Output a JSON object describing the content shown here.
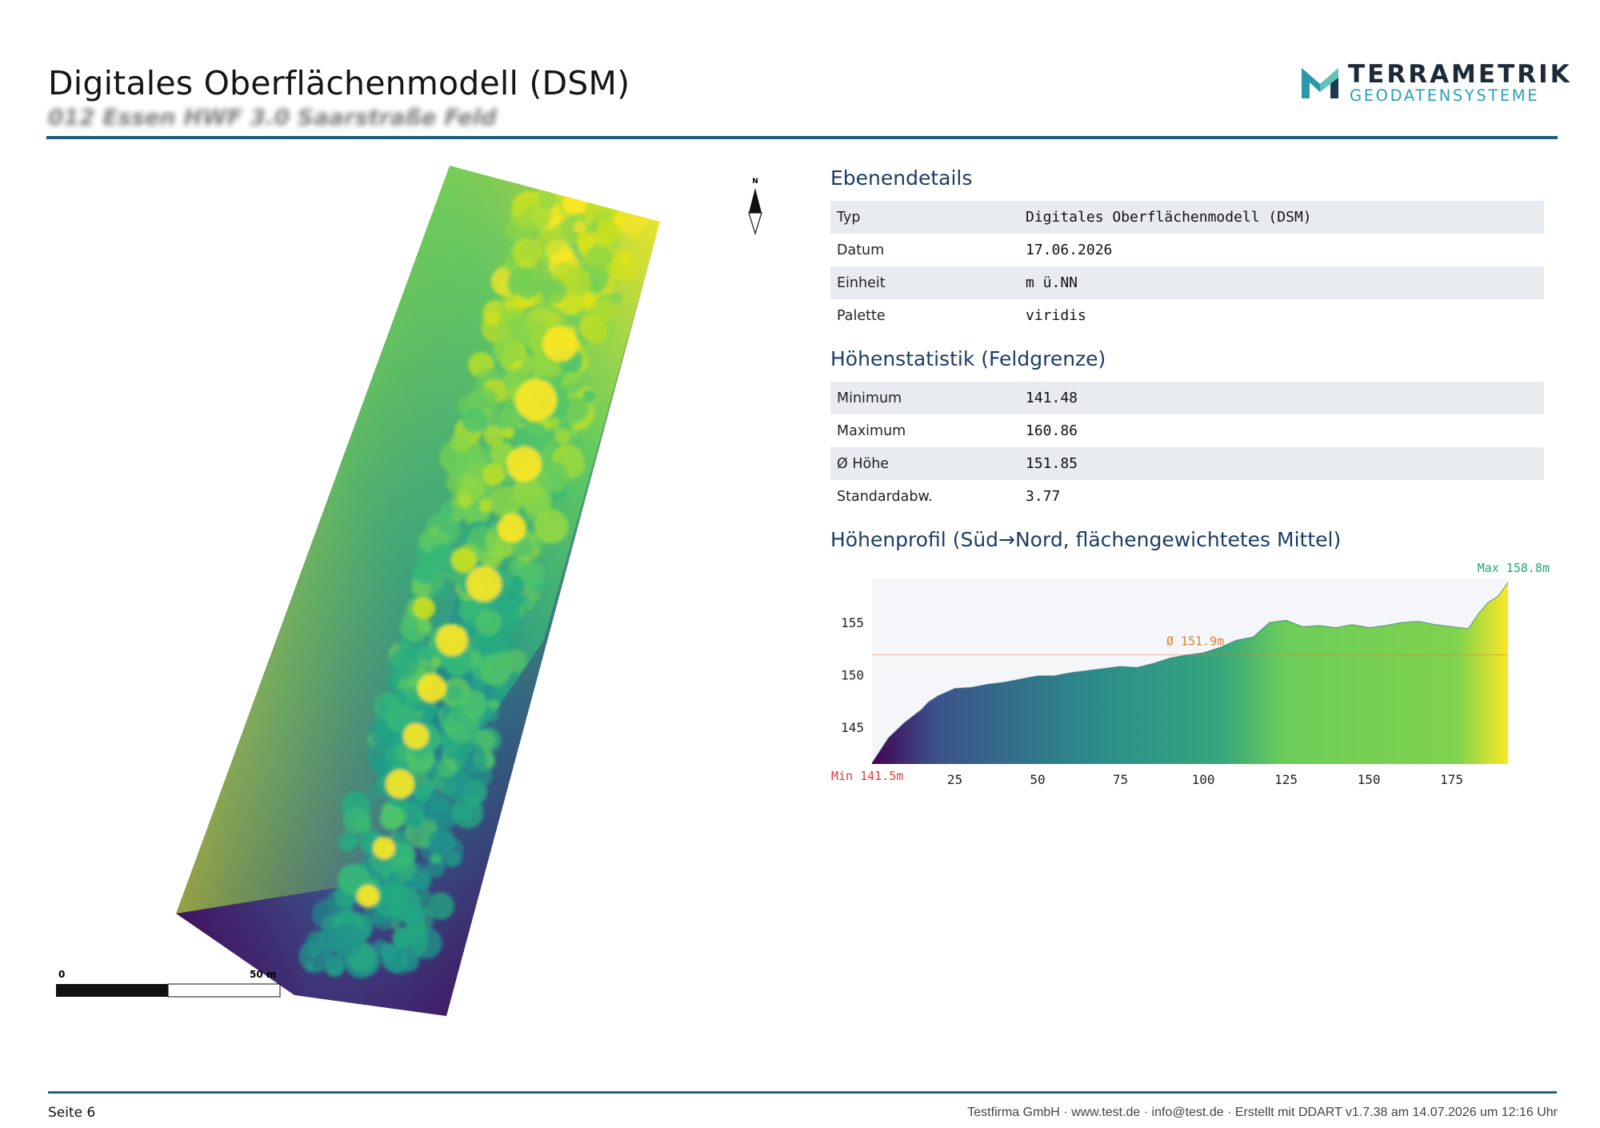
{
  "header": {
    "title": "Digitales Oberflächenmodell (DSM)",
    "subtitle": "012 Essen HWF 3.0 Saarstraße Feld"
  },
  "logo": {
    "brand": "TERRAMETRIK",
    "tagline": "GEODATENSYSTEME",
    "colors": {
      "dark": "#1d2a38",
      "teal": "#29a0b1"
    }
  },
  "map": {
    "palette_colors": [
      "#440154",
      "#31688e",
      "#35b779",
      "#fde725"
    ],
    "north_label": "N",
    "scalebar": {
      "start_label": "0",
      "end_label": "50 m"
    }
  },
  "details": {
    "heading": "Ebenendetails",
    "rows": [
      {
        "key": "Typ",
        "value": "Digitales Oberflächenmodell (DSM)"
      },
      {
        "key": "Datum",
        "value": "17.06.2026"
      },
      {
        "key": "Einheit",
        "value": "m ü.NN"
      },
      {
        "key": "Palette",
        "value": "viridis"
      }
    ]
  },
  "stats": {
    "heading": "Höhenstatistik (Feldgrenze)",
    "rows": [
      {
        "key": "Minimum",
        "value": "141.48"
      },
      {
        "key": "Maximum",
        "value": "160.86"
      },
      {
        "key": "Ø Höhe",
        "value": "151.85"
      },
      {
        "key": "Standardabw.",
        "value": "3.77"
      }
    ]
  },
  "profile": {
    "heading": "Höhenprofil (Süd→Nord, flächengewichtetes Mittel)"
  },
  "chart_data": {
    "type": "area",
    "title": "Höhenprofil (Süd→Nord, flächengewichtetes Mittel)",
    "xlabel": "",
    "ylabel": "",
    "xlim": [
      0,
      192
    ],
    "ylim": [
      141.5,
      159.2
    ],
    "x_ticks": [
      25,
      50,
      75,
      100,
      125,
      150,
      175
    ],
    "y_ticks": [
      145,
      150,
      155
    ],
    "x": [
      0,
      5,
      10,
      15,
      17,
      20,
      25,
      30,
      35,
      40,
      45,
      50,
      55,
      60,
      65,
      70,
      75,
      80,
      85,
      90,
      95,
      100,
      105,
      110,
      115,
      120,
      125,
      130,
      135,
      140,
      145,
      150,
      155,
      160,
      165,
      170,
      175,
      180,
      183,
      186,
      189,
      192
    ],
    "values": [
      141.6,
      144.0,
      145.5,
      146.7,
      147.4,
      148.0,
      148.7,
      148.8,
      149.1,
      149.3,
      149.6,
      149.9,
      149.9,
      150.2,
      150.4,
      150.6,
      150.8,
      150.7,
      151.1,
      151.6,
      151.9,
      152.1,
      152.6,
      153.3,
      153.6,
      155.0,
      155.2,
      154.6,
      154.7,
      154.5,
      154.8,
      154.5,
      154.7,
      155.0,
      155.1,
      154.8,
      154.6,
      154.4,
      155.8,
      156.9,
      157.5,
      158.8
    ],
    "mean": {
      "value": 151.9,
      "label": "Ø 151.9m",
      "color": "#d9822b"
    },
    "min_label": {
      "text": "Min 141.5m",
      "color": "#e03c3c"
    },
    "max_label": {
      "text": "Max 158.8m",
      "color": "#21a67a"
    },
    "tick_labels_x": [
      "25",
      "50",
      "75",
      "100",
      "125",
      "150",
      "175"
    ],
    "tick_labels_y": [
      "145",
      "150",
      "155"
    ],
    "grid": false,
    "colormap": "viridis"
  },
  "footer": {
    "page": "Seite 6",
    "info": "Testfirma GmbH · www.test.de · info@test.de · Erstellt mit DDART v1.7.38 am 14.07.2026 um 12:16 Uhr"
  }
}
